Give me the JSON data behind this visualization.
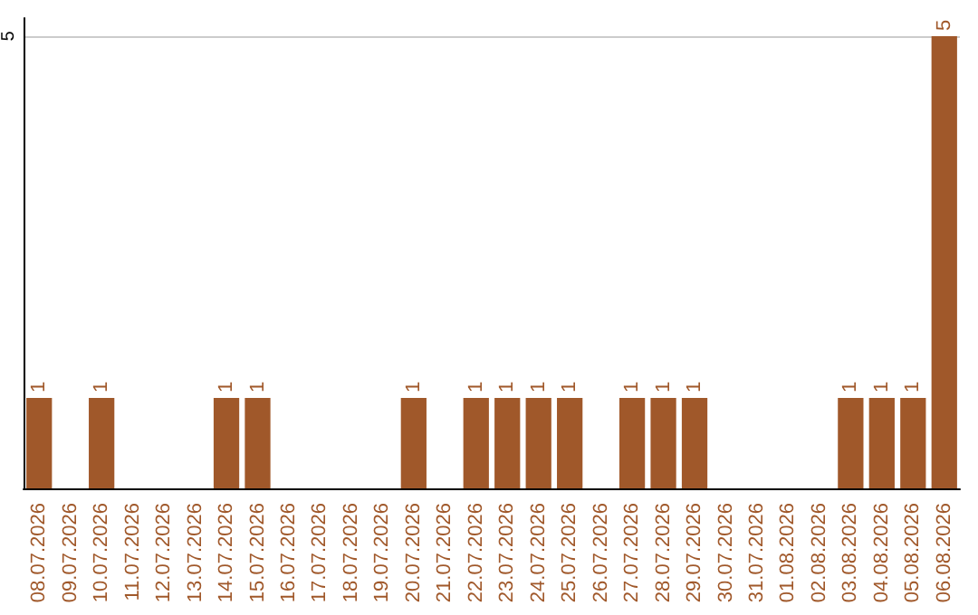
{
  "chart_data": {
    "type": "bar",
    "categories": [
      "08.07.2026",
      "09.07.2026",
      "10.07.2026",
      "11.07.2026",
      "12.07.2026",
      "13.07.2026",
      "14.07.2026",
      "15.07.2026",
      "16.07.2026",
      "17.07.2026",
      "18.07.2026",
      "19.07.2026",
      "20.07.2026",
      "21.07.2026",
      "22.07.2026",
      "23.07.2026",
      "24.07.2026",
      "25.07.2026",
      "26.07.2026",
      "27.07.2026",
      "28.07.2026",
      "29.07.2026",
      "30.07.2026",
      "31.07.2026",
      "01.08.2026",
      "02.08.2026",
      "03.08.2026",
      "04.08.2026",
      "05.08.2026",
      "06.08.2026"
    ],
    "values": [
      1,
      0,
      1,
      0,
      0,
      0,
      1,
      1,
      0,
      0,
      0,
      0,
      1,
      0,
      1,
      1,
      1,
      1,
      0,
      1,
      1,
      1,
      0,
      0,
      0,
      0,
      1,
      1,
      1,
      5
    ],
    "value_labels": [
      "1",
      null,
      "1",
      null,
      null,
      null,
      "1",
      "1",
      null,
      null,
      null,
      null,
      "1",
      null,
      "1",
      "1",
      "1",
      "1",
      null,
      "1",
      "1",
      "1",
      null,
      null,
      null,
      null,
      "1",
      "1",
      "1",
      "5"
    ],
    "color": "#a0582a",
    "ylim": [
      0,
      5.2
    ],
    "yticks": [
      5
    ],
    "grid": "y"
  }
}
